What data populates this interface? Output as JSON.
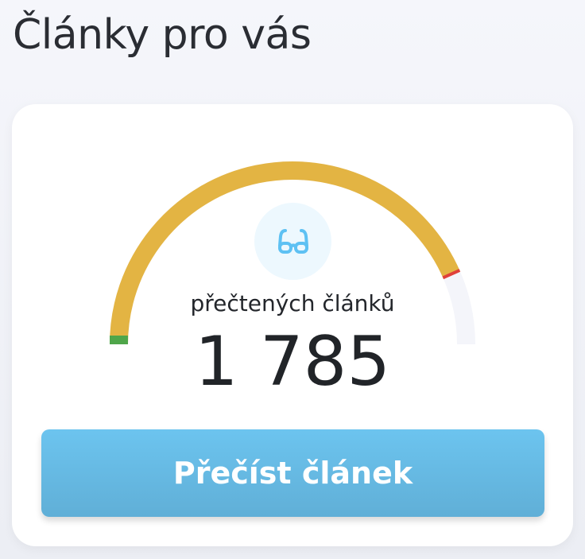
{
  "header": {
    "title": "Články pro vás"
  },
  "gauge": {
    "fraction": 0.87,
    "label": "přečtených článků",
    "value": "1 785",
    "icon": "glasses-icon",
    "colors": {
      "fill": "#e3b443",
      "track": "#f4f5fa",
      "start": "#4fa64a",
      "end": "#e0403a",
      "icon": "#5ec1f3"
    }
  },
  "actions": {
    "read_label": "Přečíst článek"
  }
}
